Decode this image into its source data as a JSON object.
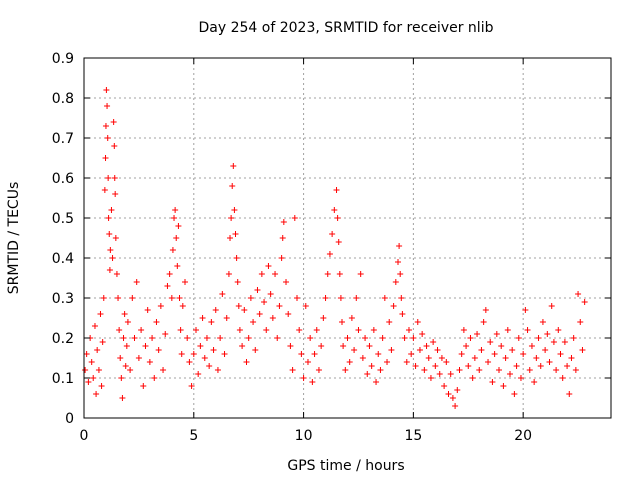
{
  "chart_data": {
    "type": "scatter",
    "title": "Day 254 of 2023, SRMTID for receiver nlib",
    "xlabel": "GPS time / hours",
    "ylabel": "SRMTID / TECUs",
    "xlim": [
      0,
      24
    ],
    "ylim": [
      0,
      0.9
    ],
    "xticks": [
      0,
      5,
      10,
      15,
      20
    ],
    "xtick_labels": [
      "0",
      "5",
      "10",
      "15",
      "20"
    ],
    "yticks": [
      0,
      0.1,
      0.2,
      0.3,
      0.4,
      0.5,
      0.6,
      0.7,
      0.8,
      0.9
    ],
    "ytick_labels": [
      "0",
      "0.1",
      "0.2",
      "0.3",
      "0.4",
      "0.5",
      "0.6",
      "0.7",
      "0.8",
      "0.9"
    ],
    "grid": true,
    "marker": "+",
    "marker_color": "#ff0000",
    "series": [
      {
        "name": "SRMTID",
        "points": [
          [
            0.05,
            0.12
          ],
          [
            0.12,
            0.16
          ],
          [
            0.2,
            0.09
          ],
          [
            0.28,
            0.2
          ],
          [
            0.35,
            0.14
          ],
          [
            0.42,
            0.1
          ],
          [
            0.5,
            0.23
          ],
          [
            0.55,
            0.06
          ],
          [
            0.6,
            0.17
          ],
          [
            0.68,
            0.12
          ],
          [
            0.75,
            0.26
          ],
          [
            0.8,
            0.08
          ],
          [
            0.85,
            0.19
          ],
          [
            0.9,
            0.3
          ],
          [
            0.95,
            0.57
          ],
          [
            0.98,
            0.65
          ],
          [
            1.0,
            0.73
          ],
          [
            1.02,
            0.82
          ],
          [
            1.05,
            0.78
          ],
          [
            1.08,
            0.7
          ],
          [
            1.1,
            0.6
          ],
          [
            1.12,
            0.5
          ],
          [
            1.15,
            0.46
          ],
          [
            1.18,
            0.37
          ],
          [
            1.2,
            0.42
          ],
          [
            1.25,
            0.52
          ],
          [
            1.3,
            0.4
          ],
          [
            1.35,
            0.74
          ],
          [
            1.38,
            0.68
          ],
          [
            1.4,
            0.6
          ],
          [
            1.42,
            0.56
          ],
          [
            1.45,
            0.45
          ],
          [
            1.5,
            0.36
          ],
          [
            1.55,
            0.3
          ],
          [
            1.6,
            0.22
          ],
          [
            1.65,
            0.15
          ],
          [
            1.7,
            0.1
          ],
          [
            1.75,
            0.05
          ],
          [
            1.8,
            0.2
          ],
          [
            1.85,
            0.26
          ],
          [
            1.9,
            0.13
          ],
          [
            1.95,
            0.18
          ],
          [
            2.0,
            0.24
          ],
          [
            2.1,
            0.12
          ],
          [
            2.2,
            0.3
          ],
          [
            2.3,
            0.2
          ],
          [
            2.4,
            0.34
          ],
          [
            2.5,
            0.15
          ],
          [
            2.6,
            0.22
          ],
          [
            2.7,
            0.08
          ],
          [
            2.8,
            0.18
          ],
          [
            2.9,
            0.27
          ],
          [
            3.0,
            0.14
          ],
          [
            3.1,
            0.2
          ],
          [
            3.2,
            0.1
          ],
          [
            3.3,
            0.24
          ],
          [
            3.4,
            0.17
          ],
          [
            3.5,
            0.28
          ],
          [
            3.6,
            0.12
          ],
          [
            3.7,
            0.21
          ],
          [
            3.8,
            0.33
          ],
          [
            3.9,
            0.36
          ],
          [
            4.0,
            0.3
          ],
          [
            4.05,
            0.42
          ],
          [
            4.1,
            0.5
          ],
          [
            4.15,
            0.52
          ],
          [
            4.2,
            0.45
          ],
          [
            4.25,
            0.38
          ],
          [
            4.3,
            0.48
          ],
          [
            4.35,
            0.3
          ],
          [
            4.4,
            0.22
          ],
          [
            4.45,
            0.16
          ],
          [
            4.5,
            0.28
          ],
          [
            4.6,
            0.34
          ],
          [
            4.7,
            0.2
          ],
          [
            4.8,
            0.14
          ],
          [
            4.9,
            0.08
          ],
          [
            5.0,
            0.16
          ],
          [
            5.1,
            0.22
          ],
          [
            5.2,
            0.11
          ],
          [
            5.3,
            0.18
          ],
          [
            5.4,
            0.25
          ],
          [
            5.5,
            0.15
          ],
          [
            5.6,
            0.2
          ],
          [
            5.7,
            0.13
          ],
          [
            5.8,
            0.24
          ],
          [
            5.9,
            0.17
          ],
          [
            6.0,
            0.27
          ],
          [
            6.1,
            0.12
          ],
          [
            6.2,
            0.2
          ],
          [
            6.3,
            0.31
          ],
          [
            6.4,
            0.16
          ],
          [
            6.5,
            0.25
          ],
          [
            6.6,
            0.36
          ],
          [
            6.65,
            0.45
          ],
          [
            6.7,
            0.5
          ],
          [
            6.75,
            0.58
          ],
          [
            6.8,
            0.63
          ],
          [
            6.85,
            0.52
          ],
          [
            6.9,
            0.46
          ],
          [
            6.95,
            0.4
          ],
          [
            7.0,
            0.34
          ],
          [
            7.05,
            0.28
          ],
          [
            7.1,
            0.22
          ],
          [
            7.2,
            0.18
          ],
          [
            7.3,
            0.27
          ],
          [
            7.4,
            0.14
          ],
          [
            7.5,
            0.2
          ],
          [
            7.6,
            0.3
          ],
          [
            7.7,
            0.24
          ],
          [
            7.8,
            0.17
          ],
          [
            7.9,
            0.32
          ],
          [
            8.0,
            0.26
          ],
          [
            8.1,
            0.36
          ],
          [
            8.2,
            0.29
          ],
          [
            8.3,
            0.22
          ],
          [
            8.4,
            0.38
          ],
          [
            8.5,
            0.31
          ],
          [
            8.6,
            0.25
          ],
          [
            8.7,
            0.36
          ],
          [
            8.8,
            0.2
          ],
          [
            8.9,
            0.28
          ],
          [
            9.0,
            0.4
          ],
          [
            9.05,
            0.45
          ],
          [
            9.1,
            0.49
          ],
          [
            9.2,
            0.34
          ],
          [
            9.3,
            0.26
          ],
          [
            9.4,
            0.18
          ],
          [
            9.5,
            0.12
          ],
          [
            9.6,
            0.5
          ],
          [
            9.7,
            0.3
          ],
          [
            9.8,
            0.22
          ],
          [
            9.9,
            0.16
          ],
          [
            10.0,
            0.1
          ],
          [
            10.1,
            0.28
          ],
          [
            10.2,
            0.14
          ],
          [
            10.3,
            0.2
          ],
          [
            10.4,
            0.09
          ],
          [
            10.5,
            0.16
          ],
          [
            10.6,
            0.22
          ],
          [
            10.7,
            0.12
          ],
          [
            10.8,
            0.18
          ],
          [
            10.9,
            0.25
          ],
          [
            11.0,
            0.3
          ],
          [
            11.1,
            0.36
          ],
          [
            11.2,
            0.41
          ],
          [
            11.3,
            0.46
          ],
          [
            11.4,
            0.52
          ],
          [
            11.5,
            0.57
          ],
          [
            11.55,
            0.5
          ],
          [
            11.6,
            0.44
          ],
          [
            11.65,
            0.36
          ],
          [
            11.7,
            0.3
          ],
          [
            11.75,
            0.24
          ],
          [
            11.8,
            0.18
          ],
          [
            11.9,
            0.12
          ],
          [
            12.0,
            0.2
          ],
          [
            12.1,
            0.14
          ],
          [
            12.2,
            0.25
          ],
          [
            12.3,
            0.17
          ],
          [
            12.4,
            0.3
          ],
          [
            12.5,
            0.22
          ],
          [
            12.6,
            0.36
          ],
          [
            12.7,
            0.15
          ],
          [
            12.8,
            0.2
          ],
          [
            12.9,
            0.11
          ],
          [
            13.0,
            0.18
          ],
          [
            13.1,
            0.13
          ],
          [
            13.2,
            0.22
          ],
          [
            13.3,
            0.09
          ],
          [
            13.4,
            0.16
          ],
          [
            13.5,
            0.12
          ],
          [
            13.6,
            0.2
          ],
          [
            13.7,
            0.3
          ],
          [
            13.8,
            0.14
          ],
          [
            13.9,
            0.24
          ],
          [
            14.0,
            0.17
          ],
          [
            14.1,
            0.28
          ],
          [
            14.2,
            0.34
          ],
          [
            14.3,
            0.39
          ],
          [
            14.35,
            0.43
          ],
          [
            14.4,
            0.36
          ],
          [
            14.45,
            0.3
          ],
          [
            14.5,
            0.26
          ],
          [
            14.6,
            0.2
          ],
          [
            14.7,
            0.14
          ],
          [
            14.8,
            0.22
          ],
          [
            14.9,
            0.16
          ],
          [
            15.0,
            0.2
          ],
          [
            15.1,
            0.13
          ],
          [
            15.2,
            0.24
          ],
          [
            15.3,
            0.17
          ],
          [
            15.4,
            0.21
          ],
          [
            15.5,
            0.12
          ],
          [
            15.6,
            0.18
          ],
          [
            15.7,
            0.15
          ],
          [
            15.8,
            0.1
          ],
          [
            15.9,
            0.19
          ],
          [
            16.0,
            0.13
          ],
          [
            16.1,
            0.17
          ],
          [
            16.2,
            0.11
          ],
          [
            16.3,
            0.15
          ],
          [
            16.4,
            0.08
          ],
          [
            16.5,
            0.14
          ],
          [
            16.6,
            0.06
          ],
          [
            16.7,
            0.11
          ],
          [
            16.8,
            0.05
          ],
          [
            16.9,
            0.03
          ],
          [
            17.0,
            0.07
          ],
          [
            17.1,
            0.12
          ],
          [
            17.2,
            0.16
          ],
          [
            17.3,
            0.22
          ],
          [
            17.4,
            0.18
          ],
          [
            17.5,
            0.13
          ],
          [
            17.6,
            0.2
          ],
          [
            17.7,
            0.1
          ],
          [
            17.8,
            0.15
          ],
          [
            17.9,
            0.21
          ],
          [
            18.0,
            0.12
          ],
          [
            18.1,
            0.17
          ],
          [
            18.2,
            0.24
          ],
          [
            18.3,
            0.27
          ],
          [
            18.4,
            0.14
          ],
          [
            18.5,
            0.19
          ],
          [
            18.6,
            0.09
          ],
          [
            18.7,
            0.16
          ],
          [
            18.8,
            0.21
          ],
          [
            18.9,
            0.12
          ],
          [
            19.0,
            0.18
          ],
          [
            19.1,
            0.08
          ],
          [
            19.2,
            0.15
          ],
          [
            19.3,
            0.22
          ],
          [
            19.4,
            0.11
          ],
          [
            19.5,
            0.17
          ],
          [
            19.6,
            0.06
          ],
          [
            19.7,
            0.13
          ],
          [
            19.8,
            0.2
          ],
          [
            19.9,
            0.1
          ],
          [
            20.0,
            0.16
          ],
          [
            20.1,
            0.27
          ],
          [
            20.2,
            0.22
          ],
          [
            20.3,
            0.12
          ],
          [
            20.4,
            0.18
          ],
          [
            20.5,
            0.09
          ],
          [
            20.6,
            0.15
          ],
          [
            20.7,
            0.2
          ],
          [
            20.8,
            0.13
          ],
          [
            20.9,
            0.24
          ],
          [
            21.0,
            0.17
          ],
          [
            21.1,
            0.21
          ],
          [
            21.2,
            0.14
          ],
          [
            21.3,
            0.28
          ],
          [
            21.4,
            0.19
          ],
          [
            21.5,
            0.12
          ],
          [
            21.6,
            0.22
          ],
          [
            21.7,
            0.16
          ],
          [
            21.8,
            0.1
          ],
          [
            21.9,
            0.19
          ],
          [
            22.0,
            0.13
          ],
          [
            22.1,
            0.06
          ],
          [
            22.2,
            0.15
          ],
          [
            22.3,
            0.2
          ],
          [
            22.4,
            0.12
          ],
          [
            22.5,
            0.31
          ],
          [
            22.6,
            0.24
          ],
          [
            22.7,
            0.17
          ],
          [
            22.8,
            0.29
          ]
        ]
      }
    ]
  }
}
